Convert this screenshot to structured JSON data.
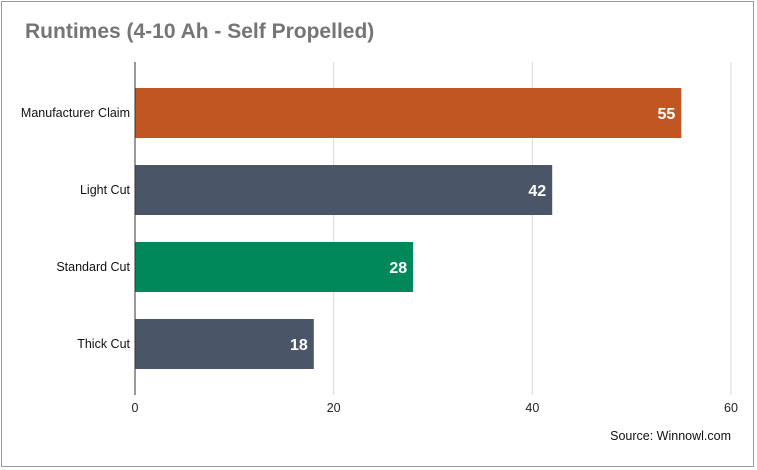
{
  "chart_data": {
    "type": "bar",
    "orientation": "horizontal",
    "title": "Runtimes (4-10 Ah - Self Propelled)",
    "source": "Source: Winnowl.com",
    "categories": [
      "Manufacturer Claim",
      "Light Cut",
      "Standard Cut",
      "Thick Cut"
    ],
    "values": [
      55,
      42,
      28,
      18
    ],
    "bar_colors": [
      "#c05621",
      "#4a5568",
      "#00875a",
      "#4a5568"
    ],
    "x_ticks": [
      0,
      20,
      40,
      60
    ],
    "xlim": [
      0,
      60
    ],
    "grid": true,
    "legend": "none"
  }
}
